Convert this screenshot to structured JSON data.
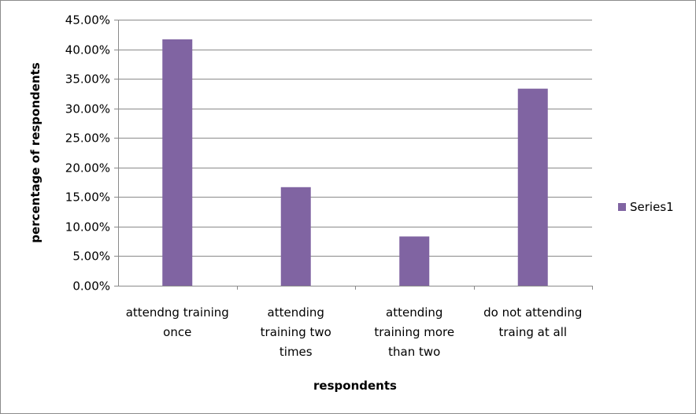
{
  "chart_data": {
    "type": "bar",
    "title": "",
    "xlabel": "respondents",
    "ylabel": "percentage of respondents",
    "categories": [
      [
        "attendng training",
        "once"
      ],
      [
        "attending",
        "training two",
        "times"
      ],
      [
        "attending",
        "training more",
        "than two"
      ],
      [
        "do not attending",
        "traing at all"
      ]
    ],
    "series": [
      {
        "name": "Series1",
        "values": [
          0.4167,
          0.1667,
          0.0833,
          0.3333
        ],
        "color": "#8064a2"
      }
    ],
    "ylim": [
      0,
      0.45
    ],
    "ytick_step": 0.05,
    "ytick_labels": [
      "0.00%",
      "5.00%",
      "10.00%",
      "15.00%",
      "20.00%",
      "25.00%",
      "30.00%",
      "35.00%",
      "40.00%",
      "45.00%"
    ],
    "grid": true,
    "legend_position": "right"
  }
}
